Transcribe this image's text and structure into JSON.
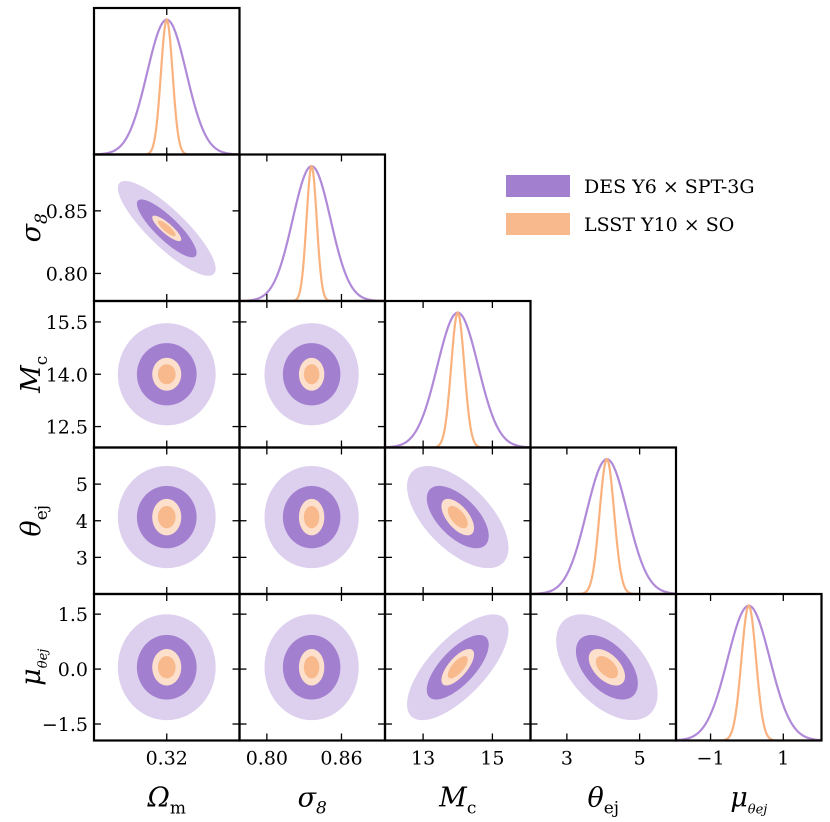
{
  "chart_data": {
    "type": "corner",
    "parameters": [
      {
        "key": "Om",
        "label_main": "Ω",
        "label_sub": "m",
        "ticks": [
          0.32
        ],
        "tick_labels": [
          "0.32"
        ],
        "range": [
          0.285,
          0.355
        ],
        "center": 0.32
      },
      {
        "key": "s8",
        "label_main": "σ",
        "label_sub": "8",
        "ticks": [
          0.8,
          0.86
        ],
        "tick_labels": [
          "0.80",
          "0.86"
        ],
        "range": [
          0.778,
          0.895
        ],
        "center": 0.836
      },
      {
        "key": "Mc",
        "label_main": "M",
        "label_sub": "c",
        "ticks": [
          13,
          15
        ],
        "tick_labels": [
          "13",
          "15"
        ],
        "tick_labels_y": [
          "12.5",
          "14.0",
          "15.5"
        ],
        "ticks_y": [
          12.5,
          14.0,
          15.5
        ],
        "range": [
          11.9,
          16.1
        ],
        "center": 14.0
      },
      {
        "key": "tej",
        "label_main": "θ",
        "label_sub": "ej",
        "ticks": [
          3,
          5
        ],
        "tick_labels": [
          "3",
          "5"
        ],
        "tick_labels_y": [
          "3",
          "4",
          "5"
        ],
        "ticks_y": [
          3,
          4,
          5
        ],
        "range": [
          2.0,
          6.0
        ],
        "center": 4.1
      },
      {
        "key": "mu",
        "label_main": "μ",
        "label_sub": "θej",
        "ticks": [
          -1,
          1
        ],
        "tick_labels": [
          "−1",
          "1"
        ],
        "tick_labels_y": [
          "−1.5",
          "0.0",
          "1.5"
        ],
        "ticks_y": [
          -1.5,
          0.0,
          1.5
        ],
        "range": [
          -1.95,
          2.05
        ],
        "center": 0.05
      }
    ],
    "y_ticks": {
      "s8": {
        "ticks": [
          0.8,
          0.85
        ],
        "labels": [
          "0.80",
          "0.85"
        ]
      }
    },
    "series": [
      {
        "name": "DES Y6 × SPT-3G",
        "color_dark": "#a37fd0",
        "color_light": "#ddd0ee",
        "color_line": "#b08ad8",
        "sigma_frac": [
          0.135,
          0.13,
          0.14,
          0.14,
          0.145
        ]
      },
      {
        "name": "LSST Y10 × SO",
        "color_dark": "#f8b98c",
        "color_light": "#fce0cc",
        "color_line": "#f9b27e",
        "sigma_frac": [
          0.04,
          0.035,
          0.045,
          0.05,
          0.05
        ]
      }
    ],
    "correlations": [
      {
        "i": 1,
        "j": 0,
        "rho": -0.85
      },
      {
        "i": 2,
        "j": 0,
        "rho": 0.0
      },
      {
        "i": 2,
        "j": 1,
        "rho": 0.0
      },
      {
        "i": 3,
        "j": 0,
        "rho": 0.0
      },
      {
        "i": 3,
        "j": 1,
        "rho": 0.0
      },
      {
        "i": 3,
        "j": 2,
        "rho": -0.6
      },
      {
        "i": 4,
        "j": 0,
        "rho": 0.0
      },
      {
        "i": 4,
        "j": 1,
        "rho": 0.0
      },
      {
        "i": 4,
        "j": 2,
        "rho": 0.7
      },
      {
        "i": 4,
        "j": 3,
        "rho": -0.5
      }
    ],
    "legend_position": "top-right"
  }
}
